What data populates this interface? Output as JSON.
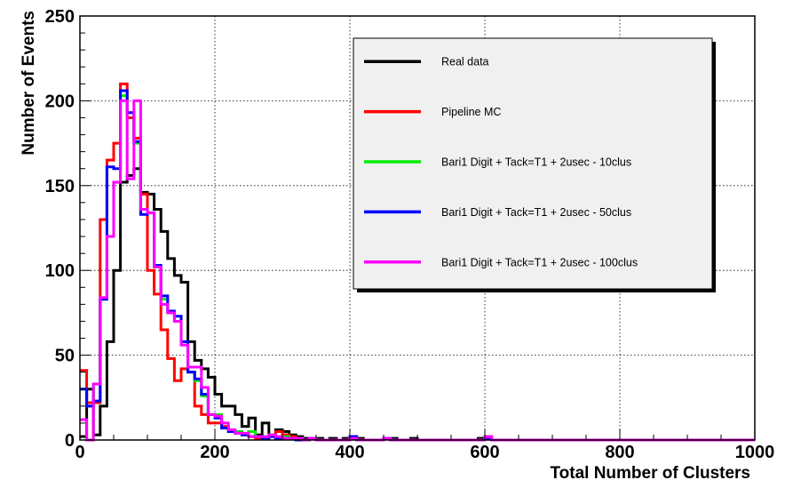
{
  "chart_data": {
    "type": "line",
    "title": "",
    "xlabel": "Total Number of Clusters",
    "ylabel": "Number of Events",
    "xlim": [
      0,
      1000
    ],
    "ylim": [
      0,
      250
    ],
    "x_ticks": [
      0,
      200,
      400,
      600,
      800,
      1000
    ],
    "y_ticks": [
      0,
      50,
      100,
      150,
      200,
      250
    ],
    "grid": true,
    "legend_position": "top-right",
    "bin_width": 10,
    "series": [
      {
        "name": "Real data",
        "color": "#000000",
        "values": [
          2,
          30,
          3,
          20,
          58,
          100,
          152,
          156,
          160,
          146,
          145,
          136,
          123,
          107,
          97,
          93,
          58,
          47,
          42,
          37,
          27,
          20,
          20,
          15,
          8,
          13,
          3,
          10,
          2,
          6,
          5,
          3,
          2,
          1,
          1,
          1,
          0,
          1,
          0,
          1,
          2,
          1,
          0,
          0,
          0,
          1,
          1,
          0,
          0,
          1,
          0,
          0,
          0,
          0,
          0,
          0,
          0,
          0,
          0,
          1,
          2,
          0,
          0,
          0,
          0,
          0,
          0,
          0,
          0,
          0,
          0,
          0,
          0,
          0,
          0,
          0,
          0,
          0,
          0,
          0,
          0,
          0,
          0,
          0,
          0,
          0,
          0,
          0,
          0,
          0,
          0,
          0,
          0,
          0,
          0,
          0,
          0,
          0,
          0,
          0
        ]
      },
      {
        "name": "Pipeline MC",
        "color": "#ff0000",
        "values": [
          41,
          22,
          22,
          130,
          165,
          175,
          210,
          190,
          178,
          145,
          100,
          86,
          65,
          48,
          35,
          42,
          40,
          20,
          15,
          10,
          10,
          8,
          5,
          5,
          3,
          2,
          1,
          1,
          3,
          5,
          3,
          2,
          1,
          0,
          1,
          0,
          0,
          0,
          0,
          0,
          1,
          0,
          0,
          0,
          0,
          1,
          0,
          0,
          0,
          0,
          0,
          0,
          0,
          0,
          0,
          0,
          0,
          0,
          0,
          0,
          1,
          0,
          0,
          0,
          0,
          0,
          0,
          0,
          0,
          0,
          0,
          0,
          0,
          0,
          0,
          0,
          0,
          0,
          0,
          0,
          0,
          0,
          0,
          0,
          0,
          0,
          0,
          0,
          0,
          0,
          0,
          0,
          0,
          0,
          0,
          0,
          0,
          0,
          0,
          0
        ]
      },
      {
        "name": "Bari1 Digit  + Tack=T1 + 2usec - 10clus",
        "color": "#00ee00",
        "values": [
          30,
          20,
          33,
          83,
          120,
          152,
          203,
          193,
          175,
          136,
          134,
          102,
          83,
          75,
          70,
          58,
          40,
          35,
          26,
          15,
          15,
          7,
          5,
          5,
          3,
          5,
          2,
          2,
          3,
          1,
          2,
          1,
          0,
          0,
          1,
          0,
          0,
          0,
          0,
          0,
          1,
          0,
          0,
          0,
          0,
          1,
          0,
          0,
          0,
          0,
          0,
          0,
          0,
          0,
          0,
          0,
          0,
          0,
          0,
          0,
          1,
          0,
          0,
          0,
          0,
          0,
          0,
          0,
          0,
          0,
          0,
          0,
          0,
          0,
          0,
          0,
          0,
          0,
          0,
          0,
          0,
          0,
          0,
          0,
          0,
          0,
          0,
          0,
          0,
          0,
          0,
          0,
          0,
          0,
          0,
          0,
          0,
          0,
          0,
          0
        ]
      },
      {
        "name": "Bari1 Digit  + Tack=T1 + 2usec - 50clus",
        "color": "#0000ff",
        "values": [
          30,
          20,
          23,
          83,
          161,
          160,
          206,
          193,
          176,
          133,
          134,
          103,
          85,
          76,
          73,
          58,
          40,
          36,
          27,
          15,
          13,
          7,
          5,
          4,
          3,
          2,
          2,
          1,
          2,
          1,
          1,
          1,
          0,
          0,
          1,
          0,
          0,
          0,
          0,
          0,
          2,
          0,
          0,
          0,
          0,
          1,
          0,
          0,
          0,
          0,
          0,
          0,
          0,
          0,
          0,
          0,
          0,
          0,
          0,
          0,
          1,
          0,
          0,
          0,
          0,
          0,
          0,
          0,
          0,
          0,
          0,
          0,
          0,
          0,
          0,
          0,
          0,
          0,
          0,
          0,
          0,
          0,
          0,
          0,
          0,
          0,
          0,
          0,
          0,
          0,
          0,
          0,
          0,
          0,
          0,
          0,
          0,
          0,
          0,
          0
        ]
      },
      {
        "name": "Bari1 Digit  + Tack=T1 + 2usec - 100clus",
        "color": "#ff00ff",
        "values": [
          12,
          0,
          33,
          84,
          120,
          152,
          200,
          154,
          200,
          136,
          134,
          102,
          80,
          75,
          70,
          56,
          43,
          43,
          31,
          15,
          14,
          10,
          6,
          4,
          4,
          2,
          2,
          2,
          3,
          2,
          1,
          1,
          1,
          0,
          1,
          0,
          0,
          0,
          0,
          0,
          1,
          0,
          0,
          0,
          0,
          1,
          0,
          0,
          0,
          0,
          0,
          0,
          0,
          0,
          0,
          0,
          0,
          0,
          0,
          0,
          2,
          0,
          0,
          0,
          0,
          0,
          0,
          0,
          0,
          0,
          0,
          0,
          0,
          0,
          0,
          0,
          0,
          0,
          0,
          0,
          0,
          0,
          0,
          0,
          0,
          0,
          0,
          0,
          0,
          0,
          0,
          0,
          0,
          0,
          0,
          0,
          0,
          0,
          0,
          0
        ]
      }
    ]
  },
  "colors": {
    "frame": "#000000",
    "grid": "#000000",
    "legend_bg": "#f0f0f0",
    "legend_shadow": "#000000"
  }
}
